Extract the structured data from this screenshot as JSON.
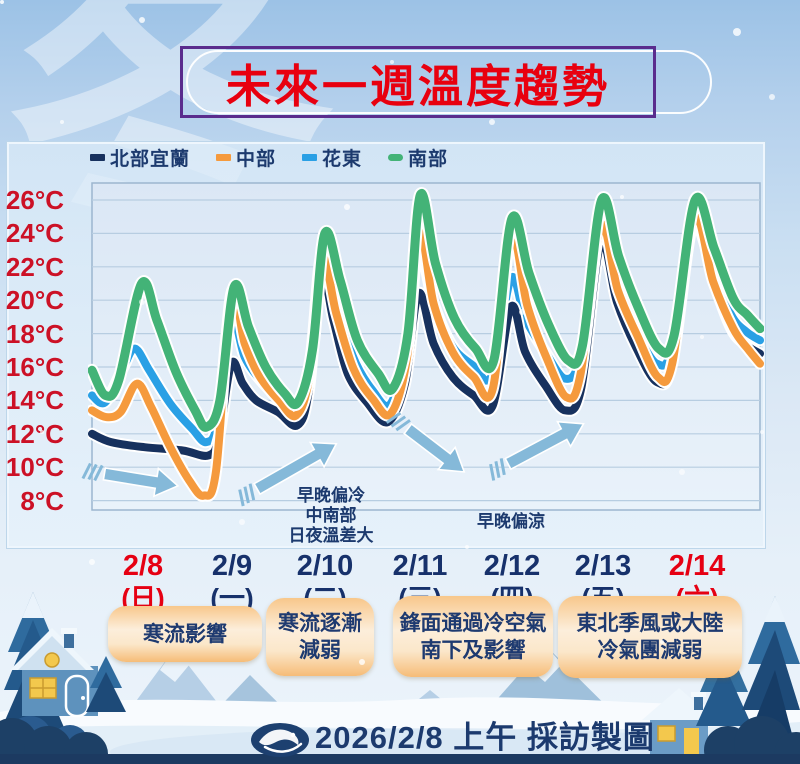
{
  "title": {
    "text": "未來一週溫度趨勢"
  },
  "watermark": "冬",
  "legend": [
    {
      "label": "北部宜蘭",
      "color": "#17315e",
      "rounded": false
    },
    {
      "label": "中部",
      "color": "#f59a3d",
      "rounded": false
    },
    {
      "label": "花東",
      "color": "#2aa0e5",
      "rounded": false
    },
    {
      "label": "南部",
      "color": "#43b377",
      "rounded": true
    }
  ],
  "chart_data": {
    "type": "line",
    "y_unit": "°C",
    "y_ticks": [
      26,
      24,
      22,
      20,
      18,
      16,
      14,
      12,
      10,
      8
    ],
    "ylim": [
      7.4,
      27.0
    ],
    "x_range_days": [
      0,
      7
    ],
    "grid": true,
    "legend_position": "top-left",
    "x_dates": [
      {
        "label": "2/8",
        "weekday": "(日)",
        "highlight": true
      },
      {
        "label": "2/9",
        "weekday": "(一)",
        "highlight": false
      },
      {
        "label": "2/10",
        "weekday": "(二)",
        "highlight": false
      },
      {
        "label": "2/11",
        "weekday": "(三)",
        "highlight": false
      },
      {
        "label": "2/12",
        "weekday": "(四)",
        "highlight": false
      },
      {
        "label": "2/13",
        "weekday": "(五)",
        "highlight": false
      },
      {
        "label": "2/14",
        "weekday": "(六)",
        "highlight": true
      }
    ],
    "series": [
      {
        "name": "花東",
        "color": "#2aa0e5",
        "width": 8,
        "points": [
          [
            0,
            14.3
          ],
          [
            0.14,
            13.9
          ],
          [
            0.33,
            16.0
          ],
          [
            0.45,
            17.1
          ],
          [
            0.6,
            15.8
          ],
          [
            0.82,
            13.8
          ],
          [
            1.05,
            12.3
          ],
          [
            1.2,
            11.5
          ],
          [
            1.32,
            12.8
          ],
          [
            1.45,
            19.3
          ],
          [
            1.6,
            16.6
          ],
          [
            1.8,
            15.0
          ],
          [
            2.0,
            14.0
          ],
          [
            2.15,
            13.6
          ],
          [
            2.29,
            16.5
          ],
          [
            2.41,
            22.9
          ],
          [
            2.56,
            20.2
          ],
          [
            2.73,
            16.7
          ],
          [
            2.94,
            14.6
          ],
          [
            3.13,
            13.8
          ],
          [
            3.3,
            17.5
          ],
          [
            3.42,
            23.4
          ],
          [
            3.57,
            20.0
          ],
          [
            3.77,
            17.3
          ],
          [
            3.99,
            16.1
          ],
          [
            4.19,
            15.5
          ],
          [
            4.39,
            21.3
          ],
          [
            4.54,
            18.9
          ],
          [
            4.75,
            16.9
          ],
          [
            4.96,
            15.3
          ],
          [
            5.12,
            16.6
          ],
          [
            5.32,
            23.0
          ],
          [
            5.5,
            20.4
          ],
          [
            5.7,
            18.1
          ],
          [
            5.92,
            16.2
          ],
          [
            6.08,
            17.2
          ],
          [
            6.29,
            24.6
          ],
          [
            6.5,
            21.9
          ],
          [
            6.7,
            19.1
          ],
          [
            6.86,
            18.1
          ],
          [
            7,
            17.6
          ]
        ]
      },
      {
        "name": "北部宜蘭",
        "color": "#17315e",
        "width": 8,
        "points": [
          [
            0,
            12.0
          ],
          [
            0.2,
            11.5
          ],
          [
            0.55,
            11.2
          ],
          [
            0.95,
            11.0
          ],
          [
            1.22,
            10.7
          ],
          [
            1.33,
            11.8
          ],
          [
            1.46,
            16.2
          ],
          [
            1.58,
            15.0
          ],
          [
            1.72,
            14.0
          ],
          [
            1.95,
            13.3
          ],
          [
            2.15,
            12.5
          ],
          [
            2.27,
            14.5
          ],
          [
            2.4,
            21.6
          ],
          [
            2.53,
            18.8
          ],
          [
            2.68,
            15.6
          ],
          [
            2.88,
            13.9
          ],
          [
            3.1,
            12.7
          ],
          [
            3.28,
            15.0
          ],
          [
            3.42,
            20.4
          ],
          [
            3.58,
            17.4
          ],
          [
            3.78,
            15.4
          ],
          [
            4.0,
            14.3
          ],
          [
            4.2,
            13.7
          ],
          [
            4.39,
            19.6
          ],
          [
            4.54,
            16.9
          ],
          [
            4.75,
            14.9
          ],
          [
            4.96,
            13.4
          ],
          [
            5.13,
            14.8
          ],
          [
            5.33,
            23.4
          ],
          [
            5.5,
            19.9
          ],
          [
            5.7,
            17.2
          ],
          [
            5.92,
            15.1
          ],
          [
            6.08,
            16.3
          ],
          [
            6.3,
            25.4
          ],
          [
            6.5,
            21.4
          ],
          [
            6.7,
            18.3
          ],
          [
            6.86,
            17.3
          ],
          [
            7,
            16.8
          ]
        ]
      },
      {
        "name": "中部",
        "color": "#f59a3d",
        "width": 8,
        "points": [
          [
            0,
            13.4
          ],
          [
            0.15,
            13.0
          ],
          [
            0.3,
            13.3
          ],
          [
            0.47,
            15.0
          ],
          [
            0.62,
            13.6
          ],
          [
            0.82,
            11.2
          ],
          [
            1.02,
            9.2
          ],
          [
            1.17,
            8.3
          ],
          [
            1.3,
            9.8
          ],
          [
            1.46,
            20.4
          ],
          [
            1.6,
            17.4
          ],
          [
            1.76,
            15.4
          ],
          [
            1.96,
            14.0
          ],
          [
            2.14,
            13.1
          ],
          [
            2.28,
            15.5
          ],
          [
            2.41,
            22.5
          ],
          [
            2.56,
            19.2
          ],
          [
            2.74,
            15.9
          ],
          [
            2.94,
            14.1
          ],
          [
            3.13,
            13.2
          ],
          [
            3.3,
            16.5
          ],
          [
            3.43,
            24.1
          ],
          [
            3.58,
            19.8
          ],
          [
            3.78,
            16.9
          ],
          [
            4.0,
            15.4
          ],
          [
            4.2,
            14.7
          ],
          [
            4.39,
            23.9
          ],
          [
            4.56,
            19.7
          ],
          [
            4.76,
            16.6
          ],
          [
            4.97,
            14.2
          ],
          [
            5.12,
            15.6
          ],
          [
            5.33,
            24.4
          ],
          [
            5.51,
            20.6
          ],
          [
            5.72,
            17.8
          ],
          [
            5.93,
            15.4
          ],
          [
            6.08,
            16.2
          ],
          [
            6.31,
            24.9
          ],
          [
            6.51,
            21.1
          ],
          [
            6.72,
            18.3
          ],
          [
            6.87,
            17.1
          ],
          [
            7,
            16.2
          ]
        ]
      },
      {
        "name": "南部",
        "color": "#43b377",
        "width": 9,
        "points": [
          [
            0,
            15.8
          ],
          [
            0.14,
            14.3
          ],
          [
            0.28,
            15.2
          ],
          [
            0.52,
            21.0
          ],
          [
            0.68,
            18.8
          ],
          [
            0.88,
            15.7
          ],
          [
            1.08,
            13.4
          ],
          [
            1.2,
            12.4
          ],
          [
            1.34,
            14.0
          ],
          [
            1.49,
            20.8
          ],
          [
            1.64,
            18.4
          ],
          [
            1.82,
            16.0
          ],
          [
            2.02,
            14.4
          ],
          [
            2.16,
            13.9
          ],
          [
            2.31,
            17.0
          ],
          [
            2.44,
            24.0
          ],
          [
            2.6,
            21.2
          ],
          [
            2.78,
            17.6
          ],
          [
            3.0,
            15.6
          ],
          [
            3.15,
            14.7
          ],
          [
            3.31,
            18.0
          ],
          [
            3.44,
            26.3
          ],
          [
            3.6,
            22.2
          ],
          [
            3.8,
            18.9
          ],
          [
            4.02,
            17.1
          ],
          [
            4.21,
            16.4
          ],
          [
            4.4,
            24.9
          ],
          [
            4.58,
            21.6
          ],
          [
            4.78,
            18.6
          ],
          [
            4.99,
            16.4
          ],
          [
            5.14,
            17.3
          ],
          [
            5.34,
            26.0
          ],
          [
            5.52,
            22.6
          ],
          [
            5.72,
            19.6
          ],
          [
            5.94,
            17.1
          ],
          [
            6.1,
            17.9
          ],
          [
            6.32,
            26.0
          ],
          [
            6.52,
            23.1
          ],
          [
            6.72,
            20.1
          ],
          [
            6.87,
            19.1
          ],
          [
            7,
            18.3
          ]
        ]
      }
    ],
    "arrows": [
      {
        "from": [
          0.13,
          9.6
        ],
        "to": [
          0.9,
          8.88
        ]
      },
      {
        "from": [
          1.73,
          8.7
        ],
        "to": [
          2.56,
          11.4
        ]
      },
      {
        "from": [
          3.31,
          12.3
        ],
        "to": [
          3.9,
          9.72
        ]
      },
      {
        "from": [
          4.36,
          10.2
        ],
        "to": [
          5.15,
          12.6
        ]
      }
    ],
    "annotations": [
      {
        "text": "早晚偏冷\n中南部\n日夜溫差大"
      },
      {
        "text": "早晚偏涼"
      }
    ],
    "arrow_color": "#85b9d9"
  },
  "boxes": [
    {
      "text": "寒流影響"
    },
    {
      "text": "寒流逐漸\n減弱"
    },
    {
      "text": "鋒面通過冷空氣\n南下及影響"
    },
    {
      "text": "東北季風或大陸\n冷氣團減弱"
    }
  ],
  "footer": {
    "credit": "2026/2/8 上午 採訪製圖",
    "logo": "liberty-times-whale-icon"
  },
  "colors": {
    "date_red": "#e60013",
    "date_navy": "#17316b",
    "ylabel_red": "#cc1126"
  }
}
